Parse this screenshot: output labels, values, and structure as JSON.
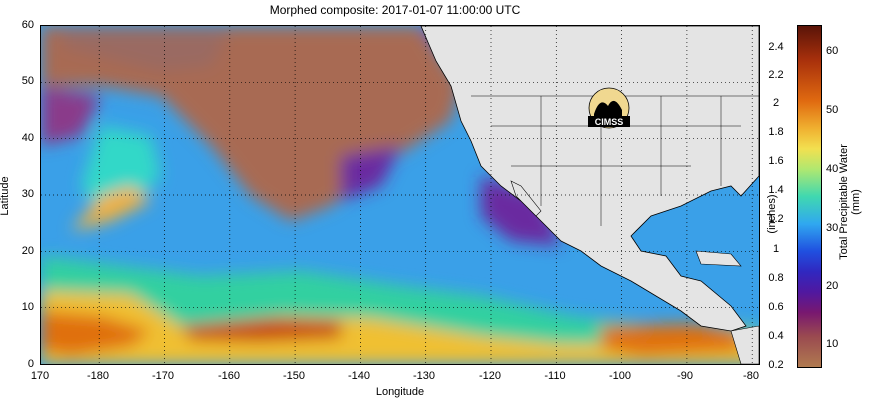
{
  "title": "Morphed composite: 2017-01-07 11:00:00 UTC",
  "axes": {
    "xlabel": "Longitude",
    "ylabel": "Latitude",
    "xticks": [
      "170",
      "-180",
      "-170",
      "-160",
      "-150",
      "-140",
      "-130",
      "-120",
      "-110",
      "-100",
      "-90",
      "-80"
    ],
    "yticks": [
      "60",
      "50",
      "40",
      "30",
      "20",
      "10",
      "0"
    ]
  },
  "logo": {
    "text": "CIMSS"
  },
  "colorbar": {
    "inches_label": "(inches)",
    "inches_ticks": [
      "2.4",
      "2.2",
      "2",
      "1.8",
      "1.6",
      "1.4",
      "1.2",
      "1",
      "0.8",
      "0.6",
      "0.4",
      "0.2"
    ],
    "mm_label": "Total Precipitable Water (mm)",
    "mm_ticks": [
      "60",
      "50",
      "40",
      "30",
      "20",
      "10"
    ]
  }
}
